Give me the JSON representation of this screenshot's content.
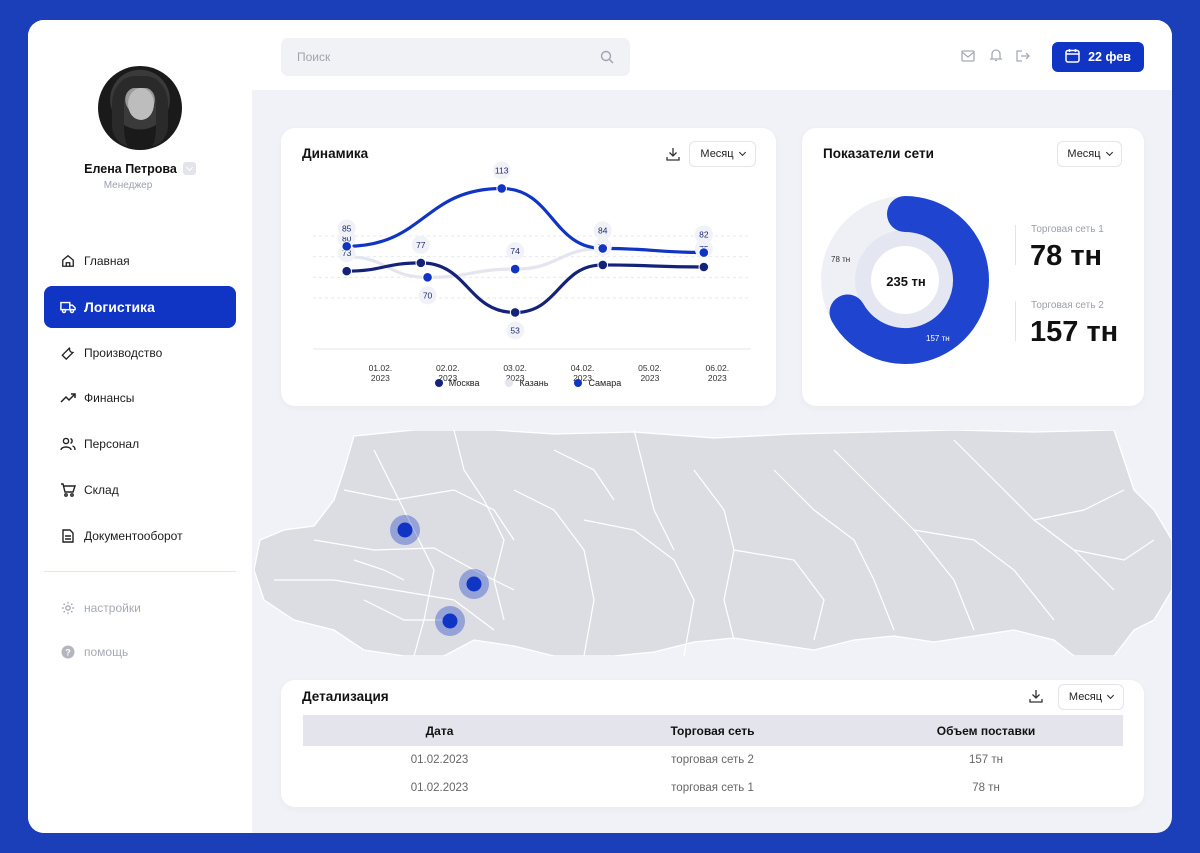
{
  "user": {
    "name": "Елена Петрова",
    "role": "Менеджер"
  },
  "nav": [
    {
      "label": "Главная",
      "icon": "home-icon"
    },
    {
      "label": "Логистика",
      "icon": "truck-icon",
      "active": true
    },
    {
      "label": "Производство",
      "icon": "wrench-icon"
    },
    {
      "label": "Финансы",
      "icon": "trend-icon"
    },
    {
      "label": "Персонал",
      "icon": "users-icon"
    },
    {
      "label": "Склад",
      "icon": "cart-icon"
    },
    {
      "label": "Документооборот",
      "icon": "document-icon"
    }
  ],
  "nav_secondary": [
    {
      "label": "настройки",
      "icon": "gear-icon"
    },
    {
      "label": "помощь",
      "icon": "help-icon"
    }
  ],
  "search": {
    "placeholder": "Поиск"
  },
  "header": {
    "date_label": "22 фев"
  },
  "dynamics": {
    "title": "Динамика",
    "period": "Месяц"
  },
  "network": {
    "title": "Показатели сети",
    "period": "Месяц",
    "total": "235 тн",
    "label_small": "78 тн",
    "label_large": "157 тн",
    "stats": [
      {
        "label": "Торговая сеть 1",
        "value": "78 тн"
      },
      {
        "label": "Торговая сеть 2",
        "value": "157 тн"
      }
    ]
  },
  "details": {
    "title": "Детализация",
    "period": "Месяц",
    "columns": [
      "Дата",
      "Торговая сеть",
      "Объем поставки"
    ],
    "rows": [
      [
        "01.02.2023",
        "торговая сеть 2",
        "157 тн"
      ],
      [
        "01.02.2023",
        "торговая сеть 1",
        "78 тн"
      ]
    ]
  },
  "colors": {
    "accent": "#1034c4",
    "dark_blue": "#14227a",
    "light_gray": "#e4e5ee",
    "frame": "#1a3fb8"
  },
  "chart_data": [
    {
      "type": "line",
      "categories": [
        "01.02.2023",
        "02.02.2023",
        "03.02.2023",
        "04.02.2023",
        "05.02.2023",
        "06.02.2023"
      ],
      "x_tick_labels": [
        [
          "01.02.",
          "2023"
        ],
        [
          "02.02.",
          "2023"
        ],
        [
          "03.02.",
          "2023"
        ],
        [
          "04.02.",
          "2023"
        ],
        [
          "05.02.",
          "2023"
        ],
        [
          "06.02.",
          "2023"
        ]
      ],
      "series": [
        {
          "name": "Москва",
          "color": "#14227a",
          "points": [
            [
              0.5,
              73
            ],
            [
              1.6,
              77
            ],
            [
              3.0,
              53
            ],
            [
              4.3,
              76
            ],
            [
              5.8,
              75
            ]
          ]
        },
        {
          "name": "Казань",
          "color": "#e4e5ee",
          "points": [
            [
              0.5,
              80
            ],
            [
              1.7,
              70
            ],
            [
              3.0,
              74
            ],
            [
              4.3,
              84
            ],
            [
              5.8,
              82
            ]
          ]
        },
        {
          "name": "Самара",
          "color": "#1034c4",
          "points": [
            [
              0.5,
              85
            ],
            [
              2.8,
              113
            ],
            [
              4.3,
              84
            ],
            [
              5.8,
              82
            ]
          ]
        }
      ],
      "grid": true,
      "legend": "bottom"
    },
    {
      "type": "pie",
      "title": "Показатели сети",
      "categories": [
        "Торговая сеть 1",
        "Торговая сеть 2"
      ],
      "values": [
        78,
        157
      ],
      "center_label": "235 тн"
    }
  ]
}
